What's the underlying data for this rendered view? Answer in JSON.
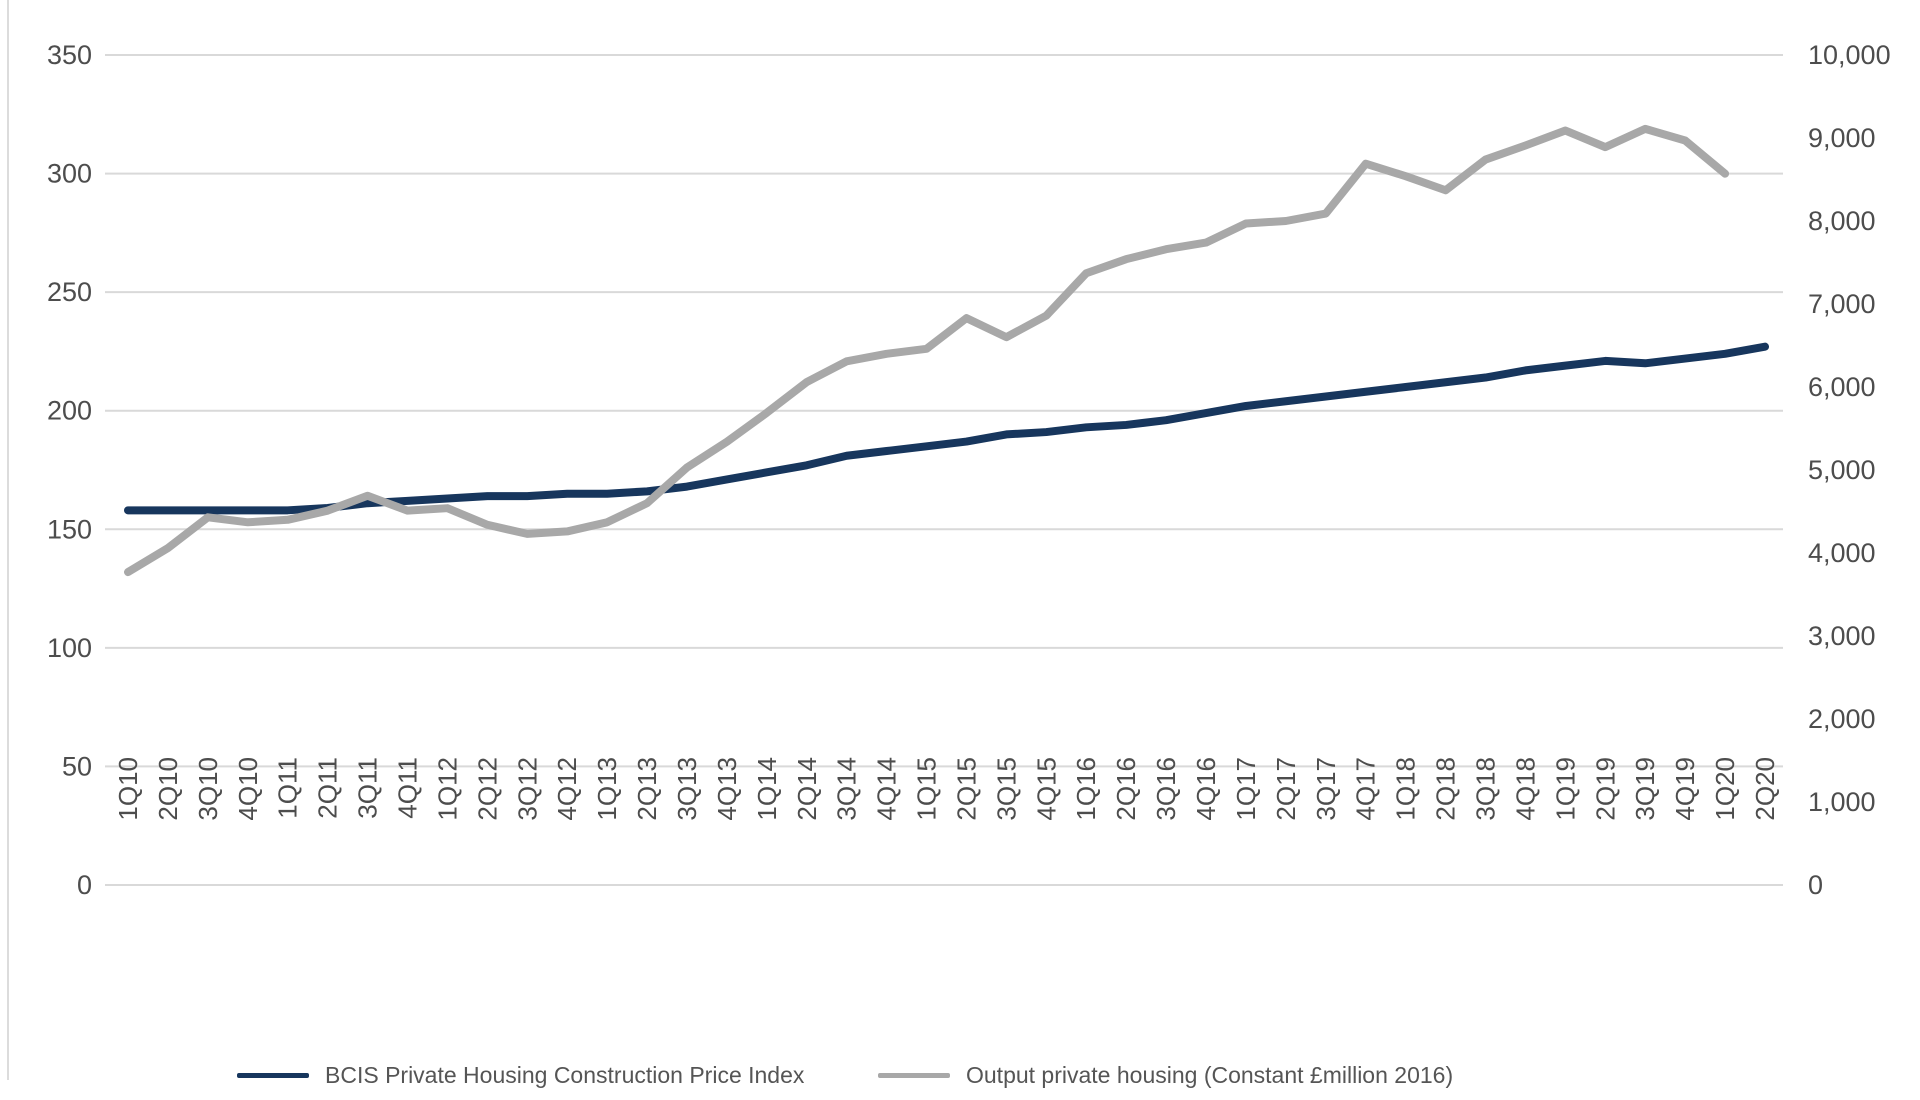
{
  "chart_data": {
    "type": "line",
    "title": "",
    "categories": [
      "1Q10",
      "2Q10",
      "3Q10",
      "4Q10",
      "1Q11",
      "2Q11",
      "3Q11",
      "4Q11",
      "1Q12",
      "2Q12",
      "3Q12",
      "4Q12",
      "1Q13",
      "2Q13",
      "3Q13",
      "4Q13",
      "1Q14",
      "2Q14",
      "3Q14",
      "4Q14",
      "1Q15",
      "2Q15",
      "3Q15",
      "4Q15",
      "1Q16",
      "2Q16",
      "3Q16",
      "4Q16",
      "1Q17",
      "2Q17",
      "3Q17",
      "4Q17",
      "1Q18",
      "2Q18",
      "3Q18",
      "4Q18",
      "1Q19",
      "2Q19",
      "3Q19",
      "4Q19",
      "1Q20",
      "2Q20"
    ],
    "series": [
      {
        "name": "BCIS Private Housing Construction Price Index",
        "axis": "left",
        "color": "#17365d",
        "values": [
          158,
          158,
          158,
          158,
          158,
          159,
          161,
          162,
          163,
          164,
          164,
          165,
          165,
          166,
          168,
          171,
          174,
          177,
          181,
          183,
          185,
          187,
          190,
          191,
          193,
          194,
          196,
          199,
          202,
          204,
          206,
          208,
          210,
          212,
          214,
          217,
          219,
          221,
          220,
          222,
          224,
          227
        ]
      },
      {
        "name": "Output private housing (Constant £million 2016)",
        "axis": "right",
        "color": "#a8a8a8",
        "values": [
          3770,
          4060,
          4430,
          4370,
          4400,
          4510,
          4690,
          4510,
          4540,
          4340,
          4230,
          4260,
          4370,
          4600,
          5030,
          5340,
          5690,
          6060,
          6310,
          6400,
          6460,
          6830,
          6600,
          6860,
          7370,
          7540,
          7660,
          7740,
          7970,
          8000,
          8090,
          8690,
          8540,
          8370,
          8740,
          8910,
          9090,
          8890,
          9110,
          8970,
          8570,
          null
        ]
      }
    ],
    "left_axis": {
      "ticks": [
        "350",
        "300",
        "250",
        "200",
        "150",
        "100",
        "50",
        "0"
      ],
      "min": 0,
      "max": 350
    },
    "right_axis": {
      "ticks": [
        "10,000",
        "9,000",
        "8,000",
        "7,000",
        "6,000",
        "5,000",
        "4,000",
        "3,000",
        "2,000",
        "1,000",
        "0"
      ],
      "min": 0,
      "max": 10000
    },
    "grid": "horizontal",
    "legend_position": "bottom",
    "colors": {
      "background": "#ffffff",
      "grid": "#d9d9d9",
      "tick_text": "#4d4d4d",
      "left_edge_line": "#dcdcdc"
    }
  }
}
